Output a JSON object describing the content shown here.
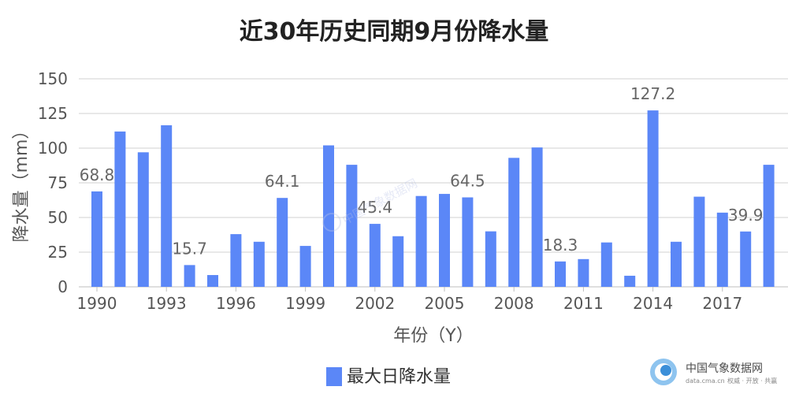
{
  "chart_data": {
    "type": "bar",
    "title": "近30年历史同期9月份降水量",
    "xlabel": "年份（Y）",
    "ylabel": "降水量（mm）",
    "ylim": [
      0,
      150
    ],
    "yticks": [
      0,
      25,
      50,
      75,
      100,
      125,
      150
    ],
    "xticks": [
      "1990",
      "1993",
      "1996",
      "1999",
      "2002",
      "2005",
      "2008",
      "2011",
      "2014",
      "2017"
    ],
    "grid": true,
    "legend_position": "bottom",
    "categories": [
      "1990",
      "1991",
      "1992",
      "1993",
      "1994",
      "1995",
      "1996",
      "1997",
      "1998",
      "1999",
      "2000",
      "2001",
      "2002",
      "2003",
      "2004",
      "2005",
      "2006",
      "2007",
      "2008",
      "2009",
      "2010",
      "2011",
      "2012",
      "2013",
      "2014",
      "2015",
      "2016",
      "2017",
      "2018",
      "2019"
    ],
    "series": [
      {
        "name": "最大日降水量",
        "color": "#5b87f7",
        "values": [
          68.8,
          112,
          97,
          116.5,
          15.7,
          8.5,
          38,
          32.5,
          64.1,
          29.5,
          102,
          88,
          45.4,
          36.5,
          65.5,
          67,
          64.5,
          40,
          93,
          100.5,
          18.3,
          20,
          32,
          8,
          127.2,
          32.5,
          65,
          53.5,
          39.9,
          88
        ]
      }
    ],
    "data_labels": [
      {
        "category": "1990",
        "text": "68.8"
      },
      {
        "category": "1994",
        "text": "15.7"
      },
      {
        "category": "1998",
        "text": "64.1"
      },
      {
        "category": "2002",
        "text": "45.4"
      },
      {
        "category": "2006",
        "text": "64.5"
      },
      {
        "category": "2010",
        "text": "18.3"
      },
      {
        "category": "2014",
        "text": "127.2"
      },
      {
        "category": "2018",
        "text": "39.9"
      }
    ]
  },
  "watermark": {
    "name": "中国气象数据网",
    "url": "data.cma.cn",
    "slogan": "权威 · 开放 · 共赢",
    "center_text": "中国气象数据网"
  }
}
